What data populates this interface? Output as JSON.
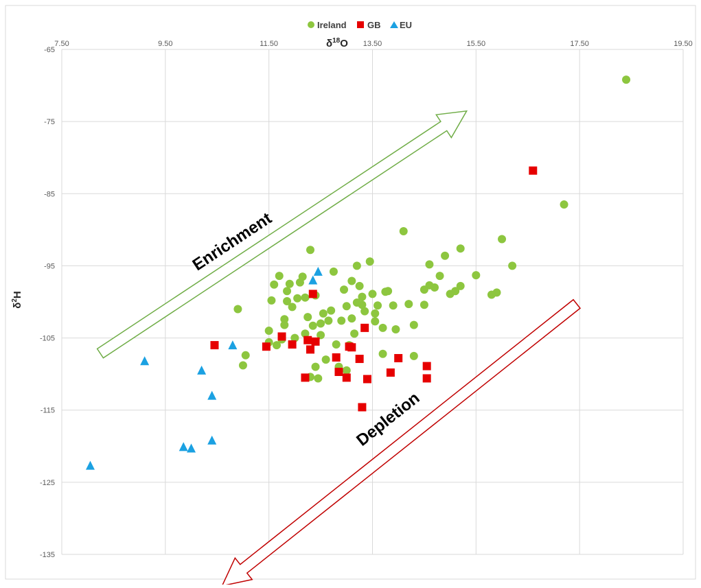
{
  "colors": {
    "Ireland": "#8DC63F",
    "GB": "#E60000",
    "EU": "#1BA1E2",
    "enrichment_arrow": "#70AD47",
    "depletion_arrow": "#C00000",
    "grid": "#D9D9D9"
  },
  "chart_data": {
    "type": "scatter",
    "title": "",
    "xlabel_main": "δ",
    "xlabel_sup": "18",
    "xlabel_rest": "O",
    "ylabel_main": "δ",
    "ylabel_sup": "2",
    "ylabel_rest": "H",
    "xlim": [
      7.5,
      19.5
    ],
    "ylim": [
      -135,
      -65
    ],
    "x_axis_position": "top",
    "x_ticks": [
      "7.50",
      "9.50",
      "11.50",
      "13.50",
      "15.50",
      "17.50",
      "19.50"
    ],
    "y_ticks": [
      "-65",
      "-75",
      "-85",
      "-95",
      "-105",
      "-115",
      "-125",
      "-135"
    ],
    "grid": true,
    "legend_position": "top-center",
    "annotations": {
      "enrichment": "Enrichment",
      "depletion": "Depletion"
    },
    "series": [
      {
        "name": "Ireland",
        "marker": "circle",
        "points": [
          [
            18.4,
            -69.2
          ],
          [
            17.2,
            -86.5
          ],
          [
            16.2,
            -95.0
          ],
          [
            16.0,
            -91.3
          ],
          [
            15.9,
            -98.7
          ],
          [
            15.8,
            -99.0
          ],
          [
            15.5,
            -96.3
          ],
          [
            15.2,
            -92.6
          ],
          [
            15.2,
            -97.8
          ],
          [
            15.1,
            -98.5
          ],
          [
            15.0,
            -98.9
          ],
          [
            14.9,
            -93.6
          ],
          [
            14.8,
            -96.4
          ],
          [
            14.7,
            -98.0
          ],
          [
            14.6,
            -94.8
          ],
          [
            14.6,
            -97.7
          ],
          [
            14.5,
            -98.3
          ],
          [
            14.5,
            -100.4
          ],
          [
            14.3,
            -103.2
          ],
          [
            14.3,
            -107.5
          ],
          [
            14.2,
            -100.3
          ],
          [
            14.1,
            -90.2
          ],
          [
            13.95,
            -103.8
          ],
          [
            13.9,
            -100.5
          ],
          [
            13.8,
            -98.5
          ],
          [
            13.75,
            -98.6
          ],
          [
            13.7,
            -103.6
          ],
          [
            13.7,
            -107.2
          ],
          [
            13.6,
            -100.5
          ],
          [
            13.55,
            -101.6
          ],
          [
            13.55,
            -102.7
          ],
          [
            13.5,
            -98.9
          ],
          [
            13.45,
            -94.4
          ],
          [
            13.35,
            -101.3
          ],
          [
            13.3,
            -99.3
          ],
          [
            13.3,
            -100.4
          ],
          [
            13.25,
            -97.8
          ],
          [
            13.2,
            -95.0
          ],
          [
            13.2,
            -100.1
          ],
          [
            13.15,
            -104.4
          ],
          [
            13.1,
            -97.1
          ],
          [
            13.1,
            -102.3
          ],
          [
            13.05,
            -106.0
          ],
          [
            13.0,
            -100.6
          ],
          [
            13.0,
            -109.5
          ],
          [
            12.95,
            -98.3
          ],
          [
            12.9,
            -102.6
          ],
          [
            12.85,
            -109.0
          ],
          [
            12.8,
            -105.9
          ],
          [
            12.75,
            -95.8
          ],
          [
            12.7,
            -101.2
          ],
          [
            12.65,
            -102.6
          ],
          [
            12.6,
            -108.0
          ],
          [
            12.55,
            -101.6
          ],
          [
            12.5,
            -103.0
          ],
          [
            12.5,
            -104.6
          ],
          [
            12.45,
            -110.6
          ],
          [
            12.4,
            -99.1
          ],
          [
            12.4,
            -109.0
          ],
          [
            12.35,
            -103.3
          ],
          [
            12.3,
            -110.4
          ],
          [
            12.3,
            -92.8
          ],
          [
            12.25,
            -102.1
          ],
          [
            12.2,
            -104.4
          ],
          [
            12.2,
            -99.4
          ],
          [
            12.15,
            -96.5
          ],
          [
            12.1,
            -97.3
          ],
          [
            12.05,
            -99.5
          ],
          [
            12.0,
            -105.0
          ],
          [
            11.95,
            -100.7
          ],
          [
            11.9,
            -97.5
          ],
          [
            11.85,
            -98.5
          ],
          [
            11.85,
            -99.9
          ],
          [
            11.8,
            -102.4
          ],
          [
            11.8,
            -103.2
          ],
          [
            11.75,
            -105.2
          ],
          [
            11.7,
            -96.4
          ],
          [
            11.65,
            -106.0
          ],
          [
            11.6,
            -97.6
          ],
          [
            11.55,
            -99.8
          ],
          [
            11.5,
            -104.0
          ],
          [
            11.5,
            -105.6
          ],
          [
            11.05,
            -107.4
          ],
          [
            11.0,
            -108.8
          ],
          [
            10.9,
            -101.0
          ]
        ]
      },
      {
        "name": "GB",
        "marker": "square",
        "points": [
          [
            16.6,
            -81.8
          ],
          [
            14.55,
            -108.9
          ],
          [
            14.55,
            -110.6
          ],
          [
            14.0,
            -107.8
          ],
          [
            13.85,
            -109.8
          ],
          [
            13.35,
            -103.6
          ],
          [
            13.4,
            -110.7
          ],
          [
            13.3,
            -114.6
          ],
          [
            13.25,
            -107.9
          ],
          [
            13.1,
            -106.3
          ],
          [
            13.05,
            -106.2
          ],
          [
            13.0,
            -110.5
          ],
          [
            12.85,
            -109.7
          ],
          [
            12.8,
            -107.7
          ],
          [
            12.35,
            -98.9
          ],
          [
            12.4,
            -105.5
          ],
          [
            12.3,
            -106.6
          ],
          [
            12.25,
            -105.3
          ],
          [
            12.2,
            -110.5
          ],
          [
            11.95,
            -105.9
          ],
          [
            11.75,
            -104.8
          ],
          [
            11.45,
            -106.2
          ],
          [
            10.45,
            -106.0
          ]
        ]
      },
      {
        "name": "EU",
        "marker": "triangle",
        "points": [
          [
            12.45,
            -95.8
          ],
          [
            12.35,
            -97.0
          ],
          [
            10.8,
            -106.0
          ],
          [
            10.4,
            -113.0
          ],
          [
            10.4,
            -119.2
          ],
          [
            10.2,
            -109.5
          ],
          [
            10.0,
            -120.3
          ],
          [
            9.85,
            -120.1
          ],
          [
            9.1,
            -108.2
          ],
          [
            8.05,
            -122.7
          ]
        ]
      }
    ]
  }
}
